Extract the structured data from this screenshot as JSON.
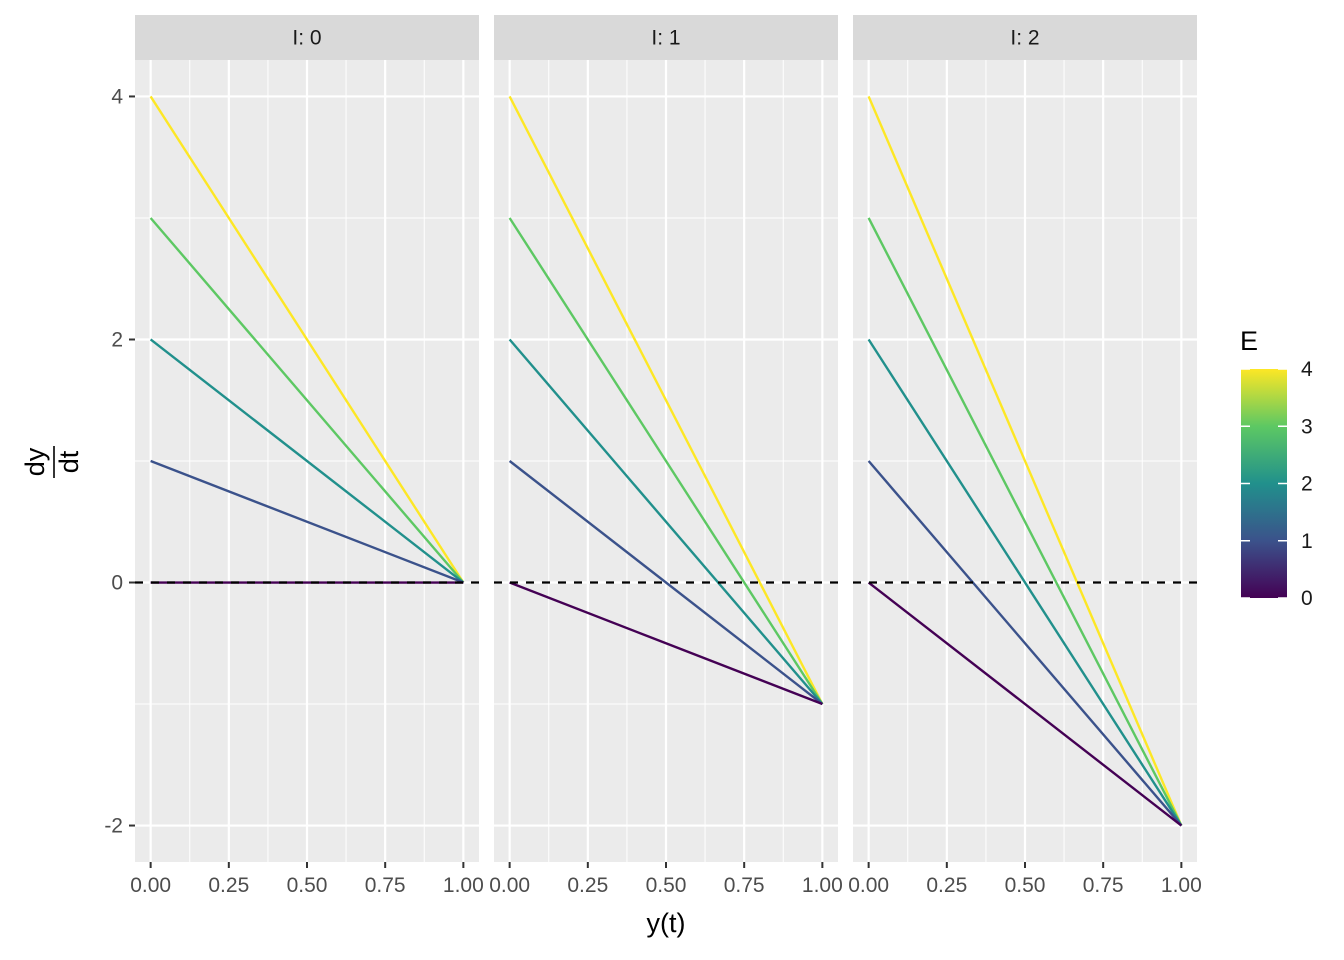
{
  "chart_data": {
    "type": "line",
    "facet_variable": "I",
    "facets": [
      {
        "strip_label": "I: 0",
        "I": 0,
        "series": [
          {
            "E": 0,
            "x": [
              0,
              1
            ],
            "y": [
              0,
              0
            ]
          },
          {
            "E": 1,
            "x": [
              0,
              1
            ],
            "y": [
              1,
              0
            ]
          },
          {
            "E": 2,
            "x": [
              0,
              1
            ],
            "y": [
              2,
              0
            ]
          },
          {
            "E": 3,
            "x": [
              0,
              1
            ],
            "y": [
              3,
              0
            ]
          },
          {
            "E": 4,
            "x": [
              0,
              1
            ],
            "y": [
              4,
              0
            ]
          }
        ]
      },
      {
        "strip_label": "I: 1",
        "I": 1,
        "series": [
          {
            "E": 0,
            "x": [
              0,
              1
            ],
            "y": [
              0,
              -1
            ]
          },
          {
            "E": 1,
            "x": [
              0,
              1
            ],
            "y": [
              1,
              -1
            ]
          },
          {
            "E": 2,
            "x": [
              0,
              1
            ],
            "y": [
              2,
              -1
            ]
          },
          {
            "E": 3,
            "x": [
              0,
              1
            ],
            "y": [
              3,
              -1
            ]
          },
          {
            "E": 4,
            "x": [
              0,
              1
            ],
            "y": [
              4,
              -1
            ]
          }
        ]
      },
      {
        "strip_label": "I: 2",
        "I": 2,
        "series": [
          {
            "E": 0,
            "x": [
              0,
              1
            ],
            "y": [
              0,
              -2
            ]
          },
          {
            "E": 1,
            "x": [
              0,
              1
            ],
            "y": [
              1,
              -2
            ]
          },
          {
            "E": 2,
            "x": [
              0,
              1
            ],
            "y": [
              2,
              -2
            ]
          },
          {
            "E": 3,
            "x": [
              0,
              1
            ],
            "y": [
              3,
              -2
            ]
          },
          {
            "E": 4,
            "x": [
              0,
              1
            ],
            "y": [
              4,
              -2
            ]
          }
        ]
      }
    ],
    "reference_line": {
      "y": 0,
      "style": "dashed",
      "color": "#000000"
    },
    "xlabel": "y(t)",
    "ylabel_numerator": "dy",
    "ylabel_denominator": "dt",
    "xlim": [
      -0.05,
      1.05
    ],
    "ylim": [
      -2.3,
      4.3
    ],
    "x_ticks": [
      0,
      0.25,
      0.5,
      0.75,
      1
    ],
    "x_tick_labels": [
      "0.00",
      "0.25",
      "0.50",
      "0.75",
      "1.00"
    ],
    "y_ticks": [
      -2,
      0,
      2,
      4
    ],
    "y_tick_labels": [
      "-2",
      "0",
      "2",
      "4"
    ],
    "legend": {
      "title": "E",
      "position": "right",
      "min": 0,
      "max": 4,
      "ticks": [
        0,
        1,
        2,
        3,
        4
      ],
      "tick_labels": [
        "0",
        "1",
        "2",
        "3",
        "4"
      ],
      "palette": "viridis"
    },
    "colors": {
      "panel_background": "#ebebeb",
      "grid": "#ffffff",
      "strip_background": "#d9d9d9",
      "viridis_stops": [
        "#440154",
        "#3b528b",
        "#21908c",
        "#5dc863",
        "#fde725"
      ]
    },
    "grid": true
  }
}
